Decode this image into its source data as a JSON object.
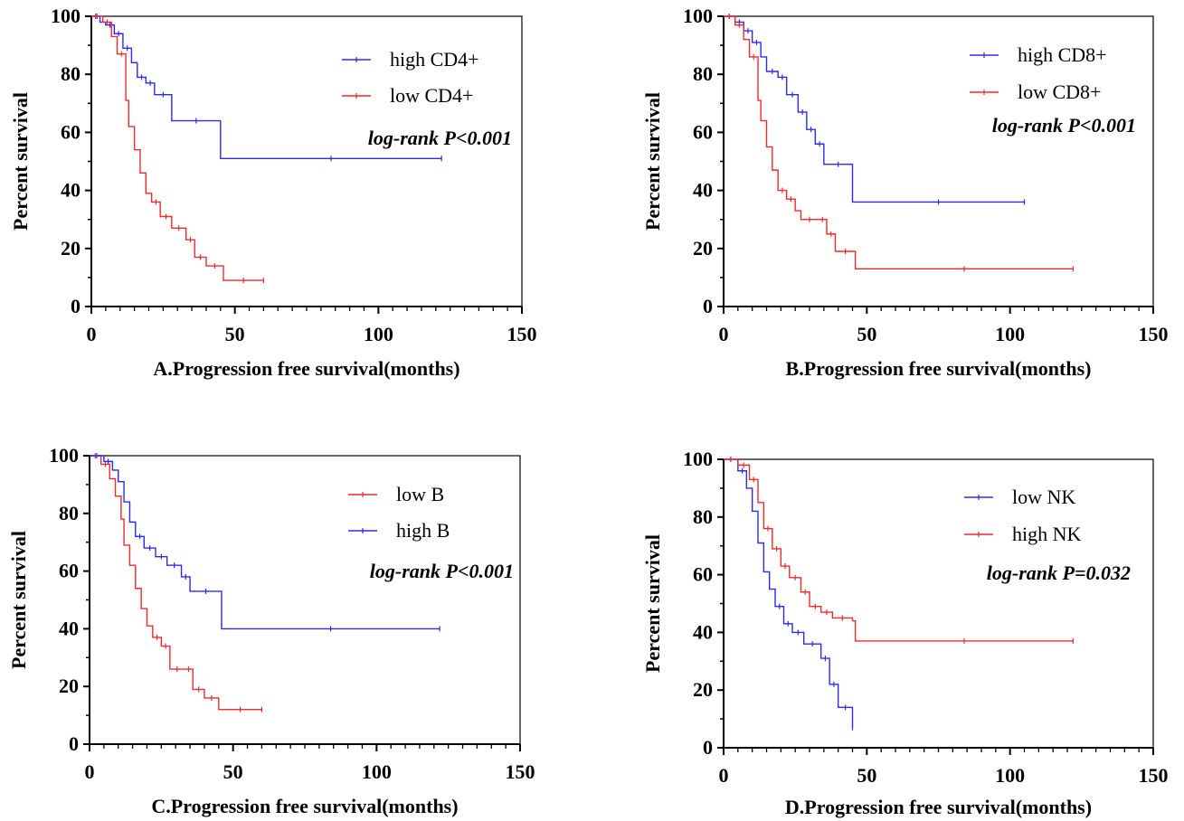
{
  "chart_data": [
    {
      "type": "line",
      "xlabel": "A.Progression free survival(months)",
      "ylabel": "Percent survival",
      "xlim": [
        0,
        150
      ],
      "ylim": [
        0,
        100
      ],
      "xticks": [
        "0",
        "50",
        "100",
        "150"
      ],
      "yticks": [
        "0",
        "20",
        "40",
        "60",
        "80",
        "100"
      ],
      "annotation": "log-rank P<0.001",
      "series": [
        {
          "name": "high CD4+",
          "color": "#2b2bf0",
          "x": [
            0,
            3,
            5,
            8,
            11,
            14,
            16,
            19,
            22,
            28,
            45,
            122
          ],
          "y": [
            100,
            98,
            97,
            94,
            89,
            84,
            79,
            77,
            73,
            64,
            51,
            51
          ]
        },
        {
          "name": "low CD4+",
          "color": "#f02b2b",
          "x": [
            0,
            4,
            7,
            9,
            12,
            13,
            15,
            17,
            19,
            21,
            24,
            28,
            33,
            36,
            40,
            46,
            60
          ],
          "y": [
            100,
            98,
            93,
            87,
            71,
            62,
            54,
            46,
            39,
            36,
            31,
            27,
            23,
            17,
            14,
            9,
            9
          ]
        }
      ]
    },
    {
      "type": "line",
      "xlabel": "B.Progression free survival(months)",
      "ylabel": "Percent survival",
      "xlim": [
        0,
        150
      ],
      "ylim": [
        0,
        100
      ],
      "xticks": [
        "0",
        "50",
        "100",
        "150"
      ],
      "yticks": [
        "0",
        "20",
        "40",
        "60",
        "80",
        "100"
      ],
      "annotation": "log-rank P<0.001",
      "series": [
        {
          "name": "high CD8+",
          "color": "#2b2bf0",
          "x": [
            0,
            4,
            7,
            10,
            13,
            15,
            19,
            22,
            26,
            29,
            32,
            35,
            45,
            105
          ],
          "y": [
            100,
            98,
            95,
            91,
            86,
            81,
            79,
            73,
            67,
            61,
            56,
            49,
            36,
            36
          ]
        },
        {
          "name": "low CD8+",
          "color": "#f02b2b",
          "x": [
            0,
            4,
            7,
            9,
            12,
            13,
            15,
            17,
            19,
            22,
            25,
            27,
            33,
            36,
            39,
            46,
            122
          ],
          "y": [
            100,
            97,
            92,
            86,
            71,
            64,
            55,
            47,
            40,
            37,
            33,
            30,
            30,
            25,
            19,
            13,
            13
          ]
        }
      ]
    },
    {
      "type": "line",
      "xlabel": "C.Progression free survival(months)",
      "ylabel": "Percent survival",
      "xlim": [
        0,
        150
      ],
      "ylim": [
        0,
        100
      ],
      "xticks": [
        "0",
        "50",
        "100",
        "150"
      ],
      "yticks": [
        "0",
        "20",
        "40",
        "60",
        "80",
        "100"
      ],
      "annotation": "log-rank P<0.001",
      "series": [
        {
          "name": "low B",
          "color": "#f02b2b",
          "x": [
            0,
            4,
            7,
            9,
            11,
            12,
            14,
            16,
            18,
            20,
            22,
            25,
            28,
            33,
            36,
            40,
            45,
            60
          ],
          "y": [
            100,
            97,
            92,
            86,
            78,
            69,
            62,
            54,
            47,
            41,
            37,
            34,
            26,
            26,
            19,
            16,
            12,
            12
          ]
        },
        {
          "name": "high B",
          "color": "#2b2bf0",
          "x": [
            0,
            5,
            8,
            10,
            12,
            14,
            16,
            19,
            23,
            27,
            32,
            35,
            46,
            122
          ],
          "y": [
            100,
            98,
            95,
            91,
            84,
            77,
            72,
            68,
            65,
            62,
            58,
            53,
            40,
            40
          ]
        }
      ]
    },
    {
      "type": "line",
      "xlabel": "D.Progression free survival(months)",
      "ylabel": "Percent survival",
      "xlim": [
        0,
        150
      ],
      "ylim": [
        0,
        100
      ],
      "xticks": [
        "0",
        "50",
        "100",
        "150"
      ],
      "yticks": [
        "0",
        "20",
        "40",
        "60",
        "80",
        "100"
      ],
      "annotation": "log-rank P=0.032",
      "series": [
        {
          "name": "low NK",
          "color": "#2b2bf0",
          "x": [
            0,
            5,
            8,
            10,
            12,
            14,
            16,
            18,
            21,
            24,
            28,
            34,
            37,
            40,
            45
          ],
          "y": [
            100,
            96,
            90,
            82,
            71,
            61,
            55,
            49,
            43,
            40,
            36,
            31,
            22,
            14,
            7
          ]
        },
        {
          "name": "high NK",
          "color": "#f02b2b",
          "x": [
            0,
            5,
            9,
            12,
            14,
            17,
            20,
            23,
            27,
            30,
            34,
            38,
            45,
            46,
            122
          ],
          "y": [
            100,
            98,
            93,
            85,
            76,
            69,
            63,
            59,
            54,
            49,
            47,
            45,
            44,
            37,
            37
          ]
        }
      ]
    }
  ]
}
